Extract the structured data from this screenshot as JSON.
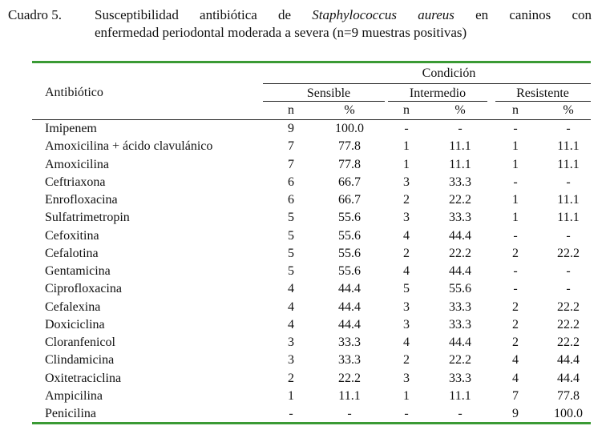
{
  "caption": {
    "label": "Cuadro 5.",
    "line1_pre": "Susceptibilidad antibiótica de",
    "line1_italic": "Staphylococcus aureus",
    "line1_post": "en caninos con",
    "line2": "enfermedad periodontal moderada a severa (n=9 muestras positivas)"
  },
  "header": {
    "antibiotic": "Antibiótico",
    "condition": "Condición",
    "groups": [
      "Sensible",
      "Intermedio",
      "Resistente"
    ],
    "sub": [
      "n",
      "%",
      "n",
      "%",
      "n",
      "%"
    ]
  },
  "rows": [
    {
      "name": "Imipenem",
      "vals": [
        "9",
        "100.0",
        "-",
        "-",
        "-",
        "-"
      ]
    },
    {
      "name": "Amoxicilina + ácido clavulánico",
      "vals": [
        "7",
        "77.8",
        "1",
        "11.1",
        "1",
        "11.1"
      ]
    },
    {
      "name": "Amoxicilina",
      "vals": [
        "7",
        "77.8",
        "1",
        "11.1",
        "1",
        "11.1"
      ]
    },
    {
      "name": "Ceftriaxona",
      "vals": [
        "6",
        "66.7",
        "3",
        "33.3",
        "-",
        "-"
      ]
    },
    {
      "name": "Enrofloxacina",
      "vals": [
        "6",
        "66.7",
        "2",
        "22.2",
        "1",
        "11.1"
      ]
    },
    {
      "name": "Sulfatrimetropin",
      "vals": [
        "5",
        "55.6",
        "3",
        "33.3",
        "1",
        "11.1"
      ]
    },
    {
      "name": "Cefoxitina",
      "vals": [
        "5",
        "55.6",
        "4",
        "44.4",
        "-",
        "-"
      ]
    },
    {
      "name": "Cefalotina",
      "vals": [
        "5",
        "55.6",
        "2",
        "22.2",
        "2",
        "22.2"
      ]
    },
    {
      "name": "Gentamicina",
      "vals": [
        "5",
        "55.6",
        "4",
        "44.4",
        "-",
        "-"
      ]
    },
    {
      "name": "Ciprofloxacina",
      "vals": [
        "4",
        "44.4",
        "5",
        "55.6",
        "-",
        "-"
      ]
    },
    {
      "name": "Cefalexina",
      "vals": [
        "4",
        "44.4",
        "3",
        "33.3",
        "2",
        "22.2"
      ]
    },
    {
      "name": "Doxiciclina",
      "vals": [
        "4",
        "44.4",
        "3",
        "33.3",
        "2",
        "22.2"
      ]
    },
    {
      "name": "Cloranfenicol",
      "vals": [
        "3",
        "33.3",
        "4",
        "44.4",
        "2",
        "22.2"
      ]
    },
    {
      "name": "Clindamicina",
      "vals": [
        "3",
        "33.3",
        "2",
        "22.2",
        "4",
        "44.4"
      ]
    },
    {
      "name": "Oxitetraciclina",
      "vals": [
        "2",
        "22.2",
        "3",
        "33.3",
        "4",
        "44.4"
      ]
    },
    {
      "name": "Ampicilina",
      "vals": [
        "1",
        "11.1",
        "1",
        "11.1",
        "7",
        "77.8"
      ]
    },
    {
      "name": "Penicilina",
      "vals": [
        "-",
        "-",
        "-",
        "-",
        "9",
        "100.0"
      ]
    }
  ]
}
